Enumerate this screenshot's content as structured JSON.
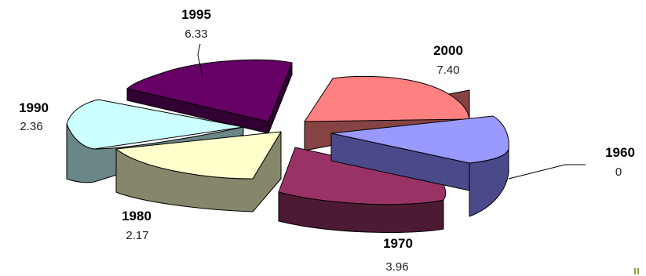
{
  "chart_data": {
    "type": "pie",
    "style": "3d-exploded",
    "categories": [
      "1960",
      "1970",
      "1980",
      "1990",
      "1995",
      "2000"
    ],
    "values": [
      0,
      3.96,
      2.17,
      2.36,
      6.33,
      7.4
    ],
    "value_labels": [
      "0",
      "3.96",
      "2.17",
      "2.36",
      "6.33",
      "7.40"
    ],
    "colors": {
      "1960": {
        "top": "#9999ff",
        "side": "#4a4a8a"
      },
      "1970": {
        "top": "#993366",
        "side": "#4d1a33"
      },
      "1980": {
        "top": "#ffffcc",
        "side": "#86866a"
      },
      "1990": {
        "top": "#ccffff",
        "side": "#6a8686"
      },
      "1995": {
        "top": "#660066",
        "side": "#330033"
      },
      "2000": {
        "top": "#ff8080",
        "side": "#864343"
      }
    },
    "legend": "none"
  }
}
